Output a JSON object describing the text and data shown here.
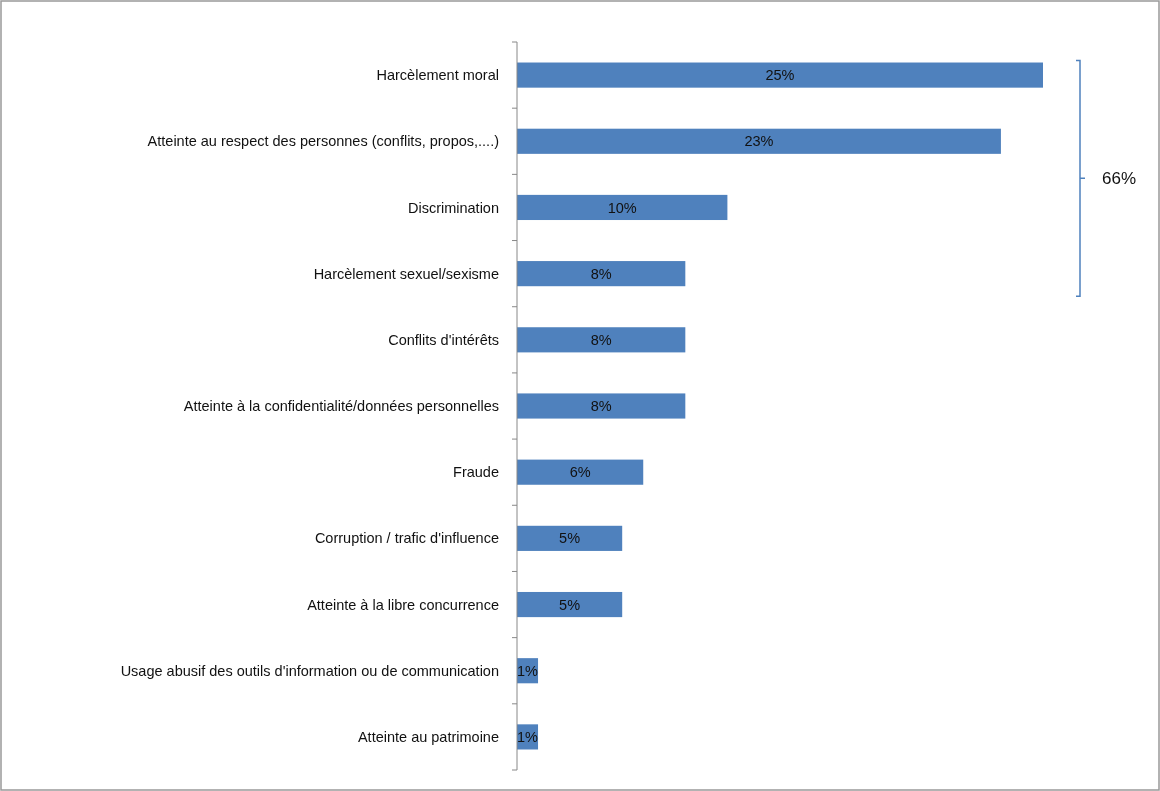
{
  "chart_data": {
    "type": "bar",
    "orientation": "horizontal",
    "value_labels": [
      "25%",
      "23%",
      "10%",
      "8%",
      "8%",
      "8%",
      "6%",
      "5%",
      "5%",
      "1%",
      "1%"
    ],
    "categories": [
      "Harcèlement moral",
      "Atteinte au respect des personnes (conflits, propos,....)",
      "Discrimination",
      "Harcèlement sexuel/sexisme",
      "Conflits d'intérêts",
      "Atteinte à la confidentialité/données personnelles",
      "Fraude",
      "Corruption / trafic d'influence",
      "Atteinte à la libre concurrence",
      "Usage abusif des outils d'information ou de communication",
      "Atteinte au patrimoine"
    ],
    "values": [
      25,
      23,
      10,
      8,
      8,
      8,
      6,
      5,
      5,
      1,
      1
    ],
    "color": "#4f81bd",
    "annotations": [
      "66%"
    ]
  }
}
